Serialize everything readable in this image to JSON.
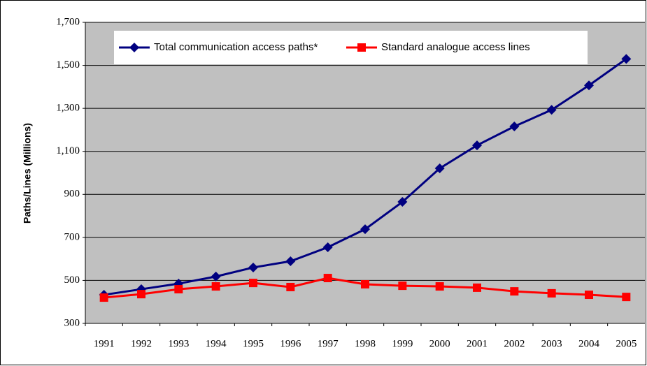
{
  "chart_data": {
    "type": "line",
    "y_label": "Paths/Lines (Millions)",
    "categories": [
      "1991",
      "1992",
      "1993",
      "1994",
      "1995",
      "1996",
      "1997",
      "1998",
      "1999",
      "2000",
      "2001",
      "2002",
      "2003",
      "2004",
      "2005"
    ],
    "series": [
      {
        "name": "Total communication access paths*",
        "color": "#000080",
        "marker": "diamond",
        "values": [
          433,
          459,
          485,
          518,
          560,
          589,
          654,
          738,
          865,
          1021,
          1128,
          1216,
          1293,
          1407,
          1530
        ]
      },
      {
        "name": "Standard analogue access lines",
        "color": "#ff0000",
        "marker": "square",
        "values": [
          420,
          436,
          459,
          472,
          488,
          469,
          511,
          482,
          475,
          472,
          466,
          449,
          440,
          433,
          423
        ]
      }
    ],
    "ylim": [
      300,
      1700
    ],
    "yticks": [
      300,
      500,
      700,
      900,
      {
        "value": 1100,
        "label": "1,100"
      },
      {
        "value": 1300,
        "label": "1,300"
      },
      {
        "value": 1500,
        "label": "1,500"
      },
      {
        "value": 1700,
        "label": "1,700"
      }
    ],
    "grid": true,
    "legend": "top"
  }
}
